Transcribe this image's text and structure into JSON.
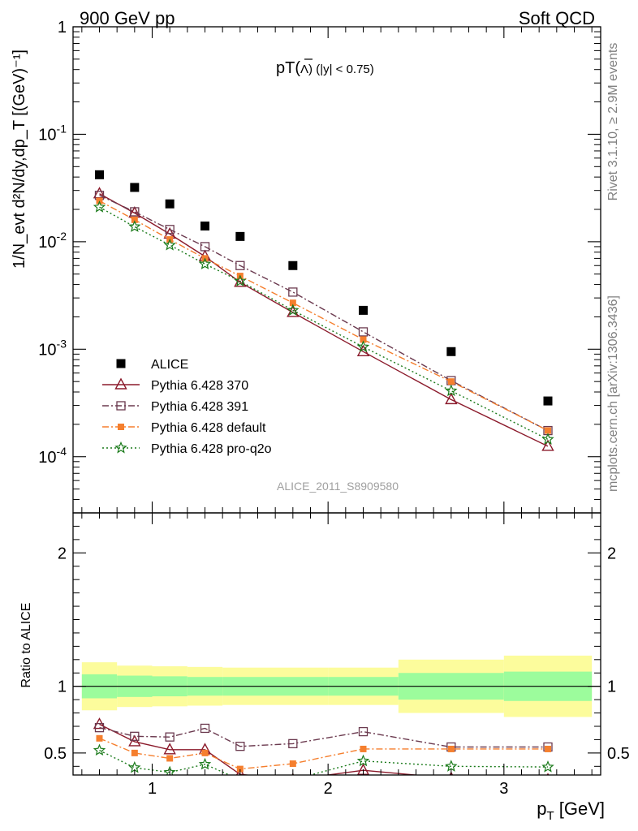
{
  "header": {
    "left_title": "900 GeV pp",
    "right_title": "Soft QCD",
    "plot_title": "pT(Λ̄) (|y| < 0.75)",
    "plot_title_main": "pT(",
    "plot_title_sym": "Λ",
    "plot_title_rest": ") (|y| < 0.75)",
    "side_text_1": "Rivet 3.1.10, ≥ 2.9M events",
    "side_text_2": "mcplots.cern.ch [arXiv:1306.3436]",
    "analysis_id": "ALICE_2011_S8909580"
  },
  "axes": {
    "xlabel": "p_T [GeV]",
    "xlabel_main": "p",
    "xlabel_sub": "T",
    "xlabel_unit": " [GeV]",
    "ylabel_top": "1/N_evt d²N/dy,dp_T [(GeV)⁻¹]",
    "ylabel_bottom": "Ratio to ALICE",
    "x_ticks": [
      "1",
      "2",
      "3"
    ],
    "y_ticks_top": [
      "1",
      "10^-1",
      "10^-2",
      "10^-3",
      "10^-4"
    ],
    "y_ticks_bottom": [
      "2",
      "1",
      "0.5"
    ]
  },
  "legend": [
    {
      "label": "ALICE",
      "key": "alice"
    },
    {
      "label": "Pythia 6.428 370",
      "key": "p370"
    },
    {
      "label": "Pythia 6.428 391",
      "key": "p391"
    },
    {
      "label": "Pythia 6.428 default",
      "key": "pdef"
    },
    {
      "label": "Pythia 6.428 pro-q2o",
      "key": "pq2o"
    }
  ],
  "colors": {
    "alice": "#000000",
    "p370": "#8b1a2b",
    "p391": "#6b3a4f",
    "pdef": "#f57f2e",
    "pq2o": "#1a7a1a",
    "band_inner": "#9cfc9c",
    "band_outer": "#fcfc9c"
  },
  "chart_data": [
    {
      "type": "scatter",
      "title": "pT(Λ̄) (|y| < 0.75)",
      "xlabel": "p_T [GeV]",
      "ylabel": "1/N_evt d²N/dy,dp_T [(GeV)⁻¹]",
      "yscale": "log",
      "xlim": [
        0.55,
        3.55
      ],
      "ylim": [
        3e-05,
        1
      ],
      "x": [
        0.7,
        0.9,
        1.1,
        1.3,
        1.5,
        1.8,
        2.2,
        2.7,
        3.25
      ],
      "series": [
        {
          "name": "ALICE",
          "key": "alice",
          "values": [
            0.042,
            0.032,
            0.0225,
            0.014,
            0.0112,
            0.006,
            0.0023,
            0.00095,
            0.00033
          ]
        },
        {
          "name": "Pythia 6.428 370",
          "key": "p370",
          "values": [
            0.028,
            0.0185,
            0.0118,
            0.0073,
            0.0042,
            0.0022,
            0.00095,
            0.00034,
            0.000125
          ]
        },
        {
          "name": "Pythia 6.428 391",
          "key": "p391",
          "values": [
            0.027,
            0.019,
            0.013,
            0.009,
            0.006,
            0.0034,
            0.00145,
            0.00051,
            0.000175
          ]
        },
        {
          "name": "Pythia 6.428 default",
          "key": "pdef",
          "values": [
            0.024,
            0.016,
            0.0105,
            0.007,
            0.0048,
            0.0027,
            0.00123,
            0.0005,
            0.000175
          ]
        },
        {
          "name": "Pythia 6.428 pro-q2o",
          "key": "pq2o",
          "values": [
            0.021,
            0.0138,
            0.0093,
            0.0062,
            0.0043,
            0.0023,
            0.00105,
            0.00041,
            0.000145
          ]
        }
      ]
    },
    {
      "type": "line",
      "ylabel": "Ratio to ALICE",
      "xlim": [
        0.55,
        3.55
      ],
      "ylim": [
        0.335,
        2.3
      ],
      "x": [
        0.7,
        0.9,
        1.1,
        1.3,
        1.5,
        1.8,
        2.2,
        2.7,
        3.25
      ],
      "bands": {
        "edges": [
          0.6,
          0.8,
          1.0,
          1.2,
          1.4,
          2.0,
          2.4,
          3.0,
          3.5
        ],
        "inner_lo": [
          0.91,
          0.92,
          0.925,
          0.93,
          0.93,
          0.93,
          0.9,
          0.89,
          0.83
        ],
        "inner_hi": [
          1.09,
          1.08,
          1.075,
          1.07,
          1.07,
          1.07,
          1.1,
          1.11,
          1.17
        ],
        "outer_lo": [
          0.82,
          0.845,
          0.85,
          0.855,
          0.86,
          0.86,
          0.8,
          0.77,
          0.62
        ],
        "outer_hi": [
          1.18,
          1.155,
          1.15,
          1.145,
          1.14,
          1.14,
          1.2,
          1.23,
          1.38
        ]
      },
      "series": [
        {
          "name": "Pythia 6.428 370",
          "key": "p370",
          "values": [
            0.715,
            0.585,
            0.525,
            0.525,
            0.34,
            0.3,
            0.37,
            0.31,
            0.3
          ]
        },
        {
          "name": "Pythia 6.428 391",
          "key": "p391",
          "values": [
            0.69,
            0.625,
            0.62,
            0.685,
            0.55,
            0.57,
            0.66,
            0.545,
            0.545
          ]
        },
        {
          "name": "Pythia 6.428 default",
          "key": "pdef",
          "values": [
            0.61,
            0.5,
            0.46,
            0.5,
            0.38,
            0.42,
            0.53,
            0.53,
            0.53
          ]
        },
        {
          "name": "Pythia 6.428 pro-q2o",
          "key": "pq2o",
          "values": [
            0.52,
            0.39,
            0.355,
            0.415,
            0.3,
            0.3,
            0.44,
            0.4,
            0.395
          ]
        }
      ]
    }
  ]
}
